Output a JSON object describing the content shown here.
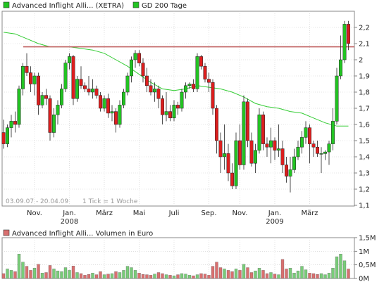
{
  "legend": {
    "price_label": "Advanced Inflight Alli... (XETRA)",
    "ma_label": "GD 200 Tage",
    "volume_label": "Advanced Inflight Alli... Volumen in Euro"
  },
  "info": {
    "date_range": "03.09.07 - 20.04.09",
    "tick_info": "1 Tick = 1 Woche"
  },
  "colors": {
    "up": "#22c422",
    "down": "#dd1e1e",
    "ma": "#33cc33",
    "resistance": "#c06060",
    "vol_up": "#79cc79",
    "vol_down": "#d97070",
    "grid": "#cccccc",
    "frame": "#888888"
  },
  "chart_data": [
    {
      "type": "candlestick",
      "title": "",
      "y_ticks": [
        "2,2",
        "2,1",
        "2",
        "1,9",
        "1,8",
        "1,7",
        "1,6",
        "1,5",
        "1,4",
        "1,3",
        "1,2",
        "1,1"
      ],
      "ylim": [
        1.1,
        2.25
      ],
      "x_labels": [
        {
          "label": "Nov.",
          "week": 8
        },
        {
          "label": "Jan.",
          "week": 17,
          "year": "2008"
        },
        {
          "label": "März",
          "week": 26
        },
        {
          "label": "Mai",
          "week": 35
        },
        {
          "label": "Juli",
          "week": 44
        },
        {
          "label": "Sep.",
          "week": 53
        },
        {
          "label": "Nov.",
          "week": 61
        },
        {
          "label": "Jan.",
          "week": 70,
          "year": "2009"
        },
        {
          "label": "März",
          "week": 79
        }
      ],
      "resistance_level": 2.08,
      "ohlc": [
        [
          1.55,
          1.63,
          1.45,
          1.48
        ],
        [
          1.48,
          1.6,
          1.46,
          1.58
        ],
        [
          1.58,
          1.66,
          1.52,
          1.62
        ],
        [
          1.62,
          1.68,
          1.55,
          1.6
        ],
        [
          1.6,
          1.84,
          1.58,
          1.82
        ],
        [
          1.82,
          1.98,
          1.78,
          1.96
        ],
        [
          1.96,
          2.04,
          1.9,
          1.92
        ],
        [
          1.92,
          1.96,
          1.8,
          1.85
        ],
        [
          1.85,
          1.92,
          1.78,
          1.9
        ],
        [
          1.9,
          1.92,
          1.66,
          1.72
        ],
        [
          1.72,
          1.8,
          1.7,
          1.78
        ],
        [
          1.78,
          1.82,
          1.72,
          1.76
        ],
        [
          1.76,
          1.78,
          1.5,
          1.55
        ],
        [
          1.55,
          1.7,
          1.52,
          1.66
        ],
        [
          1.66,
          1.75,
          1.6,
          1.72
        ],
        [
          1.72,
          1.85,
          1.7,
          1.82
        ],
        [
          1.82,
          2.0,
          1.8,
          1.98
        ],
        [
          1.98,
          2.04,
          1.94,
          2.02
        ],
        [
          2.02,
          2.03,
          1.72,
          1.76
        ],
        [
          1.76,
          1.9,
          1.74,
          1.88
        ],
        [
          1.88,
          1.96,
          1.82,
          1.84
        ],
        [
          1.84,
          1.86,
          1.8,
          1.82
        ],
        [
          1.82,
          1.9,
          1.78,
          1.8
        ],
        [
          1.8,
          1.88,
          1.76,
          1.82
        ],
        [
          1.82,
          1.84,
          1.76,
          1.78
        ],
        [
          1.78,
          1.8,
          1.68,
          1.7
        ],
        [
          1.7,
          1.78,
          1.68,
          1.76
        ],
        [
          1.76,
          1.79,
          1.64,
          1.67
        ],
        [
          1.67,
          1.72,
          1.62,
          1.68
        ],
        [
          1.68,
          1.7,
          1.55,
          1.6
        ],
        [
          1.6,
          1.75,
          1.58,
          1.72
        ],
        [
          1.72,
          1.82,
          1.7,
          1.8
        ],
        [
          1.8,
          1.92,
          1.78,
          1.9
        ],
        [
          1.9,
          2.02,
          1.86,
          2.0
        ],
        [
          2.0,
          2.06,
          1.95,
          2.04
        ],
        [
          2.04,
          2.06,
          1.96,
          1.98
        ],
        [
          1.98,
          2.01,
          1.86,
          1.9
        ],
        [
          1.9,
          1.95,
          1.8,
          1.84
        ],
        [
          1.84,
          1.88,
          1.78,
          1.8
        ],
        [
          1.8,
          1.86,
          1.74,
          1.82
        ],
        [
          1.82,
          1.84,
          1.7,
          1.76
        ],
        [
          1.76,
          1.78,
          1.6,
          1.66
        ],
        [
          1.66,
          1.8,
          1.62,
          1.68
        ],
        [
          1.68,
          1.72,
          1.62,
          1.64
        ],
        [
          1.64,
          1.75,
          1.62,
          1.72
        ],
        [
          1.72,
          1.74,
          1.66,
          1.7
        ],
        [
          1.7,
          1.82,
          1.68,
          1.8
        ],
        [
          1.8,
          1.86,
          1.76,
          1.84
        ],
        [
          1.84,
          1.86,
          1.82,
          1.85
        ],
        [
          1.85,
          1.88,
          1.8,
          1.82
        ],
        [
          1.82,
          2.04,
          1.8,
          2.02
        ],
        [
          2.02,
          2.03,
          1.94,
          1.96
        ],
        [
          1.96,
          1.98,
          1.86,
          1.88
        ],
        [
          1.88,
          1.92,
          1.8,
          1.86
        ],
        [
          1.86,
          1.88,
          1.66,
          1.7
        ],
        [
          1.7,
          1.72,
          1.42,
          1.5
        ],
        [
          1.5,
          1.55,
          1.3,
          1.4
        ],
        [
          1.4,
          1.6,
          1.32,
          1.42
        ],
        [
          1.42,
          1.48,
          1.25,
          1.3
        ],
        [
          1.3,
          1.36,
          1.2,
          1.22
        ],
        [
          1.22,
          1.55,
          1.2,
          1.5
        ],
        [
          1.5,
          1.6,
          1.32,
          1.35
        ],
        [
          1.35,
          1.78,
          1.32,
          1.74
        ],
        [
          1.74,
          1.76,
          1.46,
          1.5
        ],
        [
          1.5,
          1.55,
          1.34,
          1.36
        ],
        [
          1.36,
          1.48,
          1.3,
          1.44
        ],
        [
          1.44,
          1.7,
          1.42,
          1.66
        ],
        [
          1.66,
          1.68,
          1.44,
          1.48
        ],
        [
          1.48,
          1.52,
          1.4,
          1.46
        ],
        [
          1.46,
          1.58,
          1.36,
          1.5
        ],
        [
          1.5,
          1.52,
          1.38,
          1.44
        ],
        [
          1.44,
          1.6,
          1.4,
          1.45
        ],
        [
          1.45,
          1.5,
          1.3,
          1.35
        ],
        [
          1.35,
          1.4,
          1.24,
          1.28
        ],
        [
          1.28,
          1.4,
          1.18,
          1.32
        ],
        [
          1.32,
          1.45,
          1.3,
          1.4
        ],
        [
          1.4,
          1.5,
          1.38,
          1.46
        ],
        [
          1.46,
          1.56,
          1.42,
          1.52
        ],
        [
          1.52,
          1.62,
          1.48,
          1.58
        ],
        [
          1.58,
          1.6,
          1.36,
          1.48
        ],
        [
          1.48,
          1.5,
          1.4,
          1.46
        ],
        [
          1.46,
          1.5,
          1.4,
          1.42
        ],
        [
          1.42,
          1.46,
          1.3,
          1.42
        ],
        [
          1.42,
          1.44,
          1.38,
          1.43
        ],
        [
          1.43,
          1.5,
          1.35,
          1.48
        ],
        [
          1.48,
          1.7,
          1.44,
          1.62
        ],
        [
          1.62,
          1.95,
          1.6,
          1.9
        ],
        [
          1.9,
          2.15,
          1.88,
          2.0
        ],
        [
          2.0,
          2.24,
          1.98,
          2.22
        ],
        [
          2.22,
          2.24,
          2.06,
          2.1
        ]
      ],
      "ma200": [
        [
          0,
          2.17
        ],
        [
          3,
          2.16
        ],
        [
          6,
          2.13
        ],
        [
          9,
          2.1
        ],
        [
          12,
          2.08
        ],
        [
          15,
          2.08
        ],
        [
          17,
          2.08
        ],
        [
          20,
          2.07
        ],
        [
          23,
          2.06
        ],
        [
          26,
          2.04
        ],
        [
          29,
          2.0
        ],
        [
          32,
          1.96
        ],
        [
          35,
          1.91
        ],
        [
          38,
          1.86
        ],
        [
          41,
          1.82
        ],
        [
          44,
          1.81
        ],
        [
          47,
          1.82
        ],
        [
          50,
          1.84
        ],
        [
          53,
          1.83
        ],
        [
          56,
          1.82
        ],
        [
          59,
          1.8
        ],
        [
          62,
          1.77
        ],
        [
          65,
          1.73
        ],
        [
          68,
          1.71
        ],
        [
          71,
          1.7
        ],
        [
          74,
          1.68
        ],
        [
          77,
          1.67
        ],
        [
          80,
          1.64
        ],
        [
          83,
          1.61
        ],
        [
          86,
          1.59
        ],
        [
          89,
          1.59
        ]
      ]
    },
    {
      "type": "bar",
      "title": "",
      "y_ticks": [
        "1,5M",
        "1M",
        "0,5M",
        "0M"
      ],
      "ylim": [
        0,
        1.5
      ],
      "volume_millions": [
        0.18,
        0.35,
        0.3,
        0.25,
        0.9,
        0.6,
        0.45,
        0.3,
        0.38,
        0.52,
        0.2,
        0.22,
        0.48,
        0.35,
        0.28,
        0.25,
        0.4,
        0.3,
        0.46,
        0.22,
        0.18,
        0.12,
        0.15,
        0.2,
        0.14,
        0.25,
        0.14,
        0.16,
        0.18,
        0.25,
        0.22,
        0.3,
        0.45,
        0.4,
        0.3,
        0.2,
        0.15,
        0.14,
        0.12,
        0.16,
        0.22,
        0.18,
        0.14,
        0.12,
        0.1,
        0.14,
        0.18,
        0.16,
        0.12,
        0.1,
        0.14,
        0.18,
        0.16,
        0.12,
        0.45,
        0.6,
        0.4,
        0.35,
        0.3,
        0.25,
        0.35,
        0.3,
        0.52,
        0.4,
        0.22,
        0.28,
        0.38,
        0.3,
        0.18,
        0.22,
        0.16,
        0.14,
        0.7,
        0.35,
        0.38,
        0.2,
        0.28,
        0.45,
        0.32,
        0.2,
        0.18,
        0.15,
        0.18,
        0.14,
        0.2,
        0.38,
        0.8,
        0.9,
        0.65,
        0.35
      ]
    }
  ]
}
